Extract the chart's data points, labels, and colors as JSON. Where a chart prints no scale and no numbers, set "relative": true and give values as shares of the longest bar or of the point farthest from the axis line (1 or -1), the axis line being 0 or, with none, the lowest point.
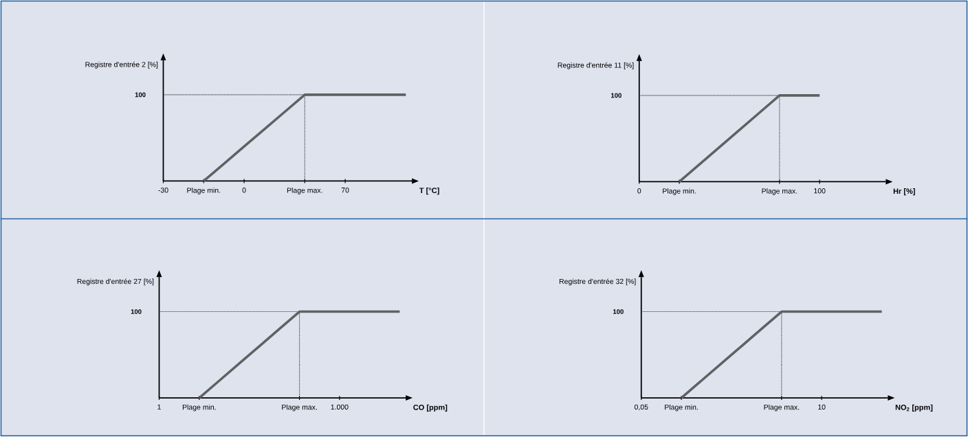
{
  "chart_data": [
    {
      "type": "line",
      "relative": true,
      "ylabel": "Registre d'entrée 2 [%]",
      "xlabel": "T [°C]",
      "categories": [
        "-30",
        null,
        "Plage min.",
        null,
        "0",
        null,
        null,
        "Plage max.",
        null,
        "70",
        null,
        null,
        null
      ],
      "series": [
        {
          "color": "#5f6163",
          "line_style": "solid",
          "values": [
            null,
            null,
            0,
            0.2,
            0.4,
            0.6,
            0.8,
            1,
            1,
            1,
            1,
            1,
            1
          ]
        },
        {
          "color": "#333333",
          "line_style": "dotted",
          "values": [
            1,
            1,
            1,
            1,
            1,
            1,
            1,
            1,
            null,
            null,
            null,
            null,
            null
          ]
        }
      ],
      "ref_lines": [
        {
          "axis": "x",
          "value": "Plage max.",
          "color": "#333333",
          "line_style": "dotted"
        }
      ],
      "annotations": [
        "100"
      ]
    },
    {
      "type": "line",
      "relative": true,
      "ylabel": "Registre d'entrée 11 [%]",
      "xlabel": "Hr [%]",
      "categories": [
        "0",
        null,
        "Plage min.",
        null,
        null,
        null,
        null,
        "Plage max.",
        null,
        "100",
        null,
        null,
        null
      ],
      "series": [
        {
          "color": "#5f6163",
          "line_style": "solid",
          "values": [
            null,
            null,
            0,
            0.2,
            0.4,
            0.6,
            0.8,
            1,
            1,
            1,
            null,
            null,
            null
          ]
        },
        {
          "color": "#333333",
          "line_style": "dotted",
          "values": [
            1,
            1,
            1,
            1,
            1,
            1,
            1,
            1,
            null,
            null,
            null,
            null,
            null
          ]
        }
      ],
      "ref_lines": [
        {
          "axis": "x",
          "value": "Plage max.",
          "color": "#333333",
          "line_style": "dotted"
        }
      ],
      "annotations": [
        "100"
      ]
    },
    {
      "type": "line",
      "relative": true,
      "ylabel": "Registre d'entrée 27 [%]",
      "xlabel": "CO [ppm]",
      "categories": [
        "1",
        null,
        "Plage min.",
        null,
        null,
        null,
        null,
        "Plage max.",
        null,
        "1.000",
        null,
        null,
        null
      ],
      "series": [
        {
          "color": "#5f6163",
          "line_style": "solid",
          "values": [
            null,
            null,
            0,
            0.2,
            0.4,
            0.6,
            0.8,
            1,
            1,
            1,
            1,
            1,
            1
          ]
        },
        {
          "color": "#333333",
          "line_style": "dotted",
          "values": [
            1,
            1,
            1,
            1,
            1,
            1,
            1,
            1,
            null,
            null,
            null,
            null,
            null
          ]
        }
      ],
      "ref_lines": [
        {
          "axis": "x",
          "value": "Plage max.",
          "color": "#333333",
          "line_style": "dotted"
        }
      ],
      "annotations": [
        "100"
      ]
    },
    {
      "type": "line",
      "relative": true,
      "ylabel": "Registre d'entrée 32 [%]",
      "xlabel": "NO$_{2}$ [ppm]",
      "categories": [
        "0,05",
        null,
        "Plage min.",
        null,
        null,
        null,
        null,
        "Plage max.",
        null,
        "10",
        null,
        null,
        null
      ],
      "series": [
        {
          "color": "#5f6163",
          "line_style": "solid",
          "values": [
            null,
            null,
            0,
            0.2,
            0.4,
            0.6,
            0.8,
            1,
            1,
            1,
            1,
            1,
            1
          ]
        },
        {
          "color": "#333333",
          "line_style": "dotted",
          "values": [
            1,
            1,
            1,
            1,
            1,
            1,
            1,
            1,
            null,
            null,
            null,
            null,
            null
          ]
        }
      ],
      "ref_lines": [
        {
          "axis": "x",
          "value": "Plage max.",
          "color": "#333333",
          "line_style": "dotted"
        }
      ],
      "annotations": [
        "100"
      ]
    }
  ]
}
